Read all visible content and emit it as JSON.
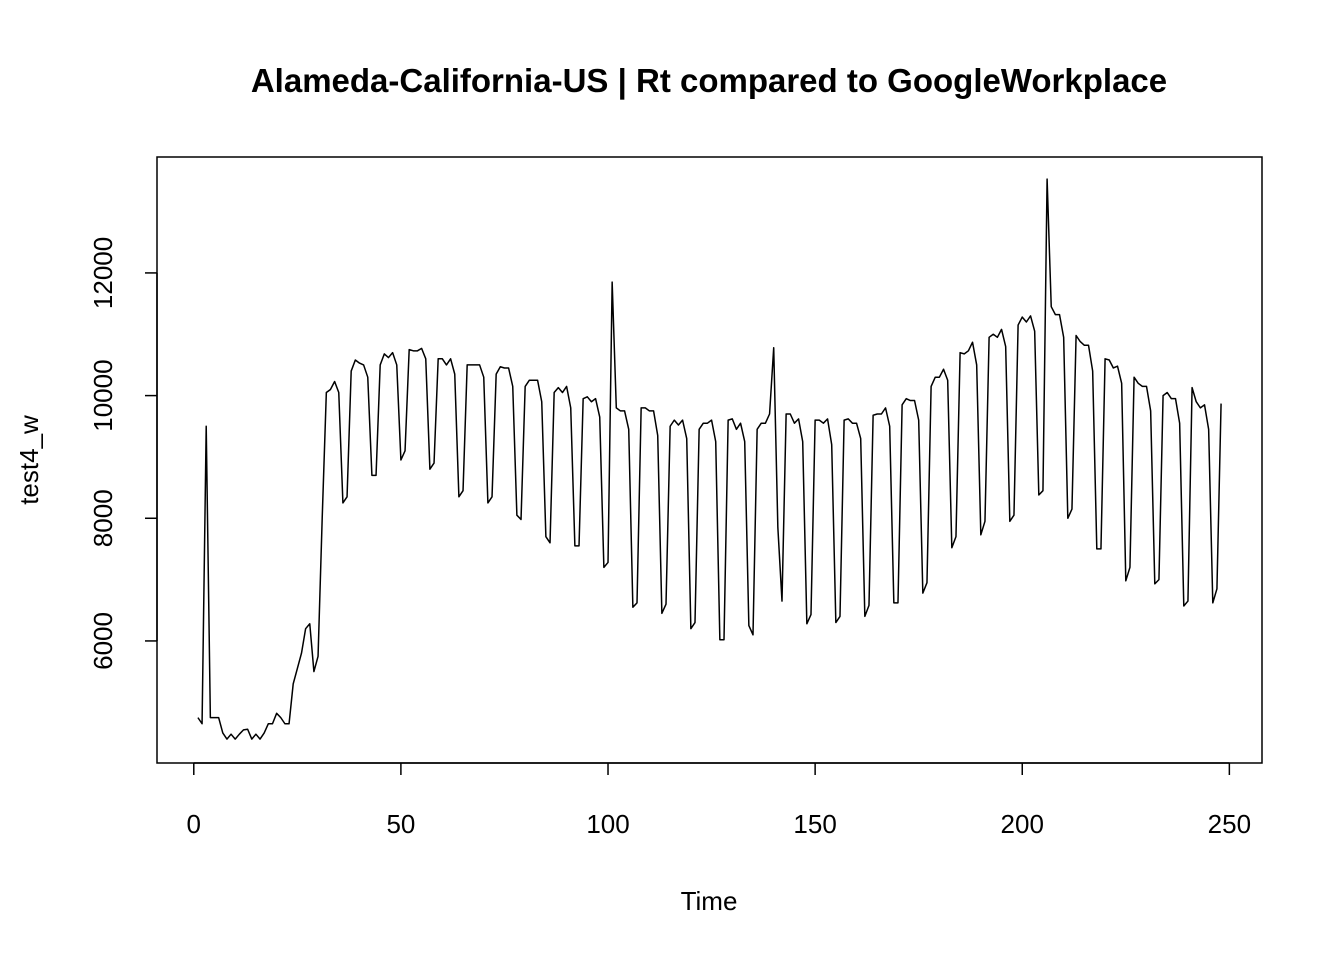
{
  "chart_data": {
    "type": "line",
    "title": "Alameda-California-US | Rt compared to GoogleWorkplace",
    "x_label": "Time",
    "y_label": "test4_w",
    "x": [
      1,
      2,
      3,
      4,
      5,
      6,
      7,
      8,
      9,
      10,
      11,
      12,
      13,
      14,
      15,
      16,
      17,
      18,
      19,
      20,
      21,
      22,
      23,
      24,
      25,
      26,
      27,
      28,
      29,
      30,
      31,
      32,
      33,
      34,
      35,
      36,
      37,
      38,
      39,
      40,
      41,
      42,
      43,
      44,
      45,
      46,
      47,
      48,
      49,
      50,
      51,
      52,
      53,
      54,
      55,
      56,
      57,
      58,
      59,
      60,
      61,
      62,
      63,
      64,
      65,
      66,
      67,
      68,
      69,
      70,
      71,
      72,
      73,
      74,
      75,
      76,
      77,
      78,
      79,
      80,
      81,
      82,
      83,
      84,
      85,
      86,
      87,
      88,
      89,
      90,
      91,
      92,
      93,
      94,
      95,
      96,
      97,
      98,
      99,
      100,
      101,
      102,
      103,
      104,
      105,
      106,
      107,
      108,
      109,
      110,
      111,
      112,
      113,
      114,
      115,
      116,
      117,
      118,
      119,
      120,
      121,
      122,
      123,
      124,
      125,
      126,
      127,
      128,
      129,
      130,
      131,
      132,
      133,
      134,
      135,
      136,
      137,
      138,
      139,
      140,
      141,
      142,
      143,
      144,
      145,
      146,
      147,
      148,
      149,
      150,
      151,
      152,
      153,
      154,
      155,
      156,
      157,
      158,
      159,
      160,
      161,
      162,
      163,
      164,
      165,
      166,
      167,
      168,
      169,
      170,
      171,
      172,
      173,
      174,
      175,
      176,
      177,
      178,
      179,
      180,
      181,
      182,
      183,
      184,
      185,
      186,
      187,
      188,
      189,
      190,
      191,
      192,
      193,
      194,
      195,
      196,
      197,
      198,
      199,
      200,
      201,
      202,
      203,
      204,
      205,
      206,
      207,
      208,
      209,
      210,
      211,
      212,
      213,
      214,
      215,
      216,
      217,
      218,
      219,
      220,
      221,
      222,
      223,
      224,
      225,
      226,
      227,
      228,
      229,
      230,
      231,
      232,
      233,
      234,
      235,
      236,
      237,
      238,
      239,
      240,
      241,
      242,
      243,
      244,
      245,
      246,
      247,
      248
    ],
    "series": [
      {
        "name": "test4_w",
        "color": "#000000",
        "values": [
          4750,
          4650,
          9500,
          4750,
          4750,
          4750,
          4500,
          4400,
          4480,
          4400,
          4480,
          4550,
          4560,
          4400,
          4480,
          4400,
          4500,
          4650,
          4650,
          4820,
          4750,
          4650,
          4650,
          5300,
          5550,
          5800,
          6200,
          6280,
          5500,
          5750,
          8000,
          10050,
          10100,
          10230,
          10050,
          8250,
          8350,
          10400,
          10580,
          10530,
          10500,
          10300,
          8700,
          8700,
          10500,
          10680,
          10620,
          10700,
          10500,
          8950,
          9100,
          10750,
          10730,
          10730,
          10770,
          10600,
          8800,
          8900,
          10600,
          10600,
          10500,
          10600,
          10350,
          8350,
          8450,
          10500,
          10500,
          10500,
          10500,
          10300,
          8250,
          8350,
          10350,
          10470,
          10450,
          10450,
          10150,
          8050,
          7980,
          10150,
          10250,
          10250,
          10250,
          9900,
          7700,
          7600,
          10050,
          10130,
          10050,
          10150,
          9800,
          7550,
          7550,
          9950,
          9980,
          9900,
          9950,
          9650,
          7200,
          7280,
          11850,
          9800,
          9750,
          9750,
          9450,
          6550,
          6620,
          9800,
          9800,
          9750,
          9750,
          9350,
          6450,
          6600,
          9500,
          9600,
          9520,
          9600,
          9300,
          6200,
          6300,
          9450,
          9550,
          9550,
          9600,
          9250,
          6020,
          6020,
          9600,
          9620,
          9450,
          9550,
          9250,
          6250,
          6100,
          9450,
          9550,
          9550,
          9700,
          10780,
          7850,
          6650,
          9700,
          9700,
          9550,
          9620,
          9250,
          6280,
          6430,
          9600,
          9600,
          9550,
          9620,
          9200,
          6300,
          6400,
          9600,
          9620,
          9550,
          9550,
          9300,
          6400,
          6580,
          9680,
          9700,
          9700,
          9800,
          9500,
          6620,
          6620,
          9850,
          9950,
          9920,
          9920,
          9600,
          6780,
          6950,
          10150,
          10300,
          10300,
          10430,
          10250,
          7520,
          7700,
          10700,
          10680,
          10730,
          10870,
          10500,
          7730,
          7950,
          10950,
          11000,
          10950,
          11080,
          10800,
          7950,
          8050,
          11150,
          11280,
          11200,
          11300,
          11050,
          8380,
          8450,
          13530,
          11450,
          11320,
          11320,
          10950,
          8000,
          8150,
          10980,
          10880,
          10820,
          10820,
          10400,
          7500,
          7500,
          10600,
          10580,
          10450,
          10480,
          10200,
          6980,
          7200,
          10300,
          10200,
          10150,
          10150,
          9750,
          6930,
          7000,
          10000,
          10050,
          9950,
          9950,
          9550,
          6570,
          6650,
          10130,
          9900,
          9800,
          9850,
          9450,
          6620,
          6850,
          9870
        ]
      }
    ],
    "xlim": [
      -8.88,
      257.88
    ],
    "ylim": [
      4010,
      13890
    ],
    "xticks": [
      0,
      50,
      100,
      150,
      200,
      250
    ],
    "yticks": [
      6000,
      8000,
      10000,
      12000
    ]
  }
}
